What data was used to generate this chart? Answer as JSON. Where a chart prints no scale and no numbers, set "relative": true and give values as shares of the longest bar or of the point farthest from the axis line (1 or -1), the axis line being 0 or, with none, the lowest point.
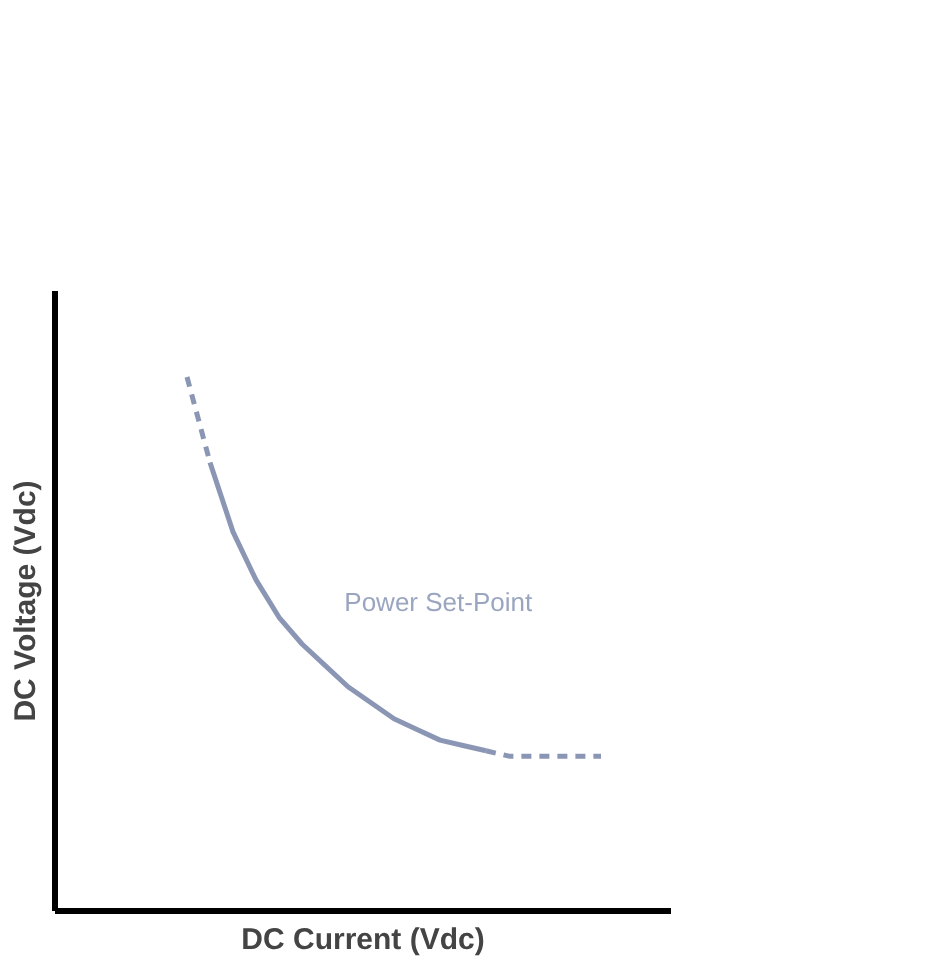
{
  "chart_data": {
    "type": "line",
    "relative": true,
    "xlabel": "DC Current (Vdc)",
    "ylabel": "DC Voltage (Vdc)",
    "annotations": [
      "Power Set-Point"
    ],
    "categories": [
      null,
      null,
      null,
      null,
      null,
      null,
      null,
      null,
      null,
      null,
      null,
      null,
      null,
      null,
      null,
      null,
      null,
      null,
      null
    ],
    "series": [
      {
        "color": "#8a96b4",
        "line_style": "dashed",
        "values": [
          1,
          0.84,
          null,
          null,
          null,
          null,
          null,
          null,
          null,
          null,
          null,
          null,
          null,
          null,
          null,
          null,
          null,
          null,
          null
        ]
      },
      {
        "color": "#8a96b4",
        "line_style": "solid",
        "values": [
          null,
          0.84,
          0.71,
          0.62,
          0.55,
          0.5,
          0.46,
          0.42,
          0.39,
          0.36,
          0.34,
          0.32,
          0.31,
          0.3,
          null,
          null,
          null,
          null,
          null
        ]
      },
      {
        "color": "#8a96b4",
        "line_style": "dashed",
        "values": [
          null,
          null,
          null,
          null,
          null,
          null,
          null,
          null,
          null,
          null,
          null,
          null,
          null,
          0.3,
          0.29,
          0.29,
          0.29,
          0.29,
          0.29
        ]
      }
    ],
    "grid": false
  }
}
